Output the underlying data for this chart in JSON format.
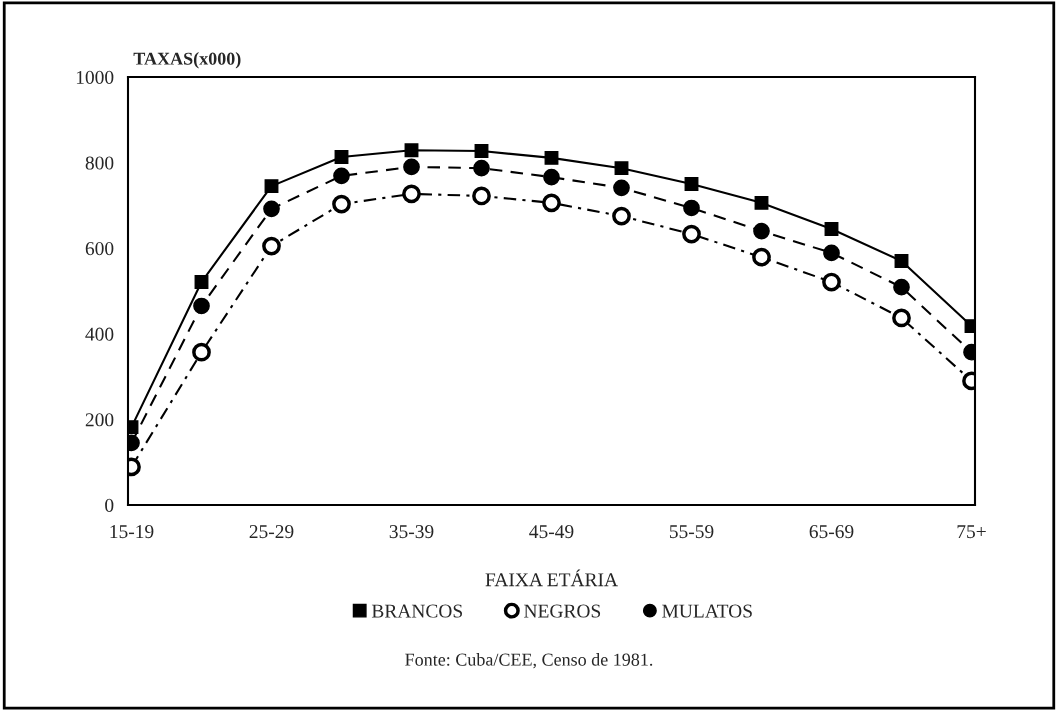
{
  "chart_data": {
    "type": "line",
    "ylabel": "TAXAS(x000)",
    "xlabel": "FAIXA ETÁRIA",
    "categories": [
      "15-19",
      null,
      "25-29",
      null,
      "35-39",
      null,
      "45-49",
      null,
      "55-59",
      null,
      "65-69",
      null,
      "75+"
    ],
    "series": [
      {
        "name": "BRANCOS",
        "color": "#000000",
        "marker": "square",
        "line_style": "solid",
        "values": [
          182,
          521,
          745,
          813,
          829,
          827,
          811,
          787,
          750,
          706,
          645,
          570,
          418
        ]
      },
      {
        "name": "NEGROS",
        "color": "#000000",
        "marker": "open circle",
        "line_style": "dashdot",
        "values": [
          89,
          357,
          605,
          703,
          727,
          722,
          706,
          675,
          633,
          579,
          521,
          437,
          290
        ]
      },
      {
        "name": "MULATOS",
        "color": "#000000",
        "marker": "circle",
        "line_style": "dashed",
        "values": [
          145,
          465,
          692,
          769,
          790,
          787,
          766,
          741,
          694,
          640,
          589,
          509,
          357
        ]
      }
    ],
    "ylim": [
      0,
      1000
    ],
    "yticks": [
      0,
      200,
      400,
      600,
      800,
      1000
    ],
    "grid": false,
    "legend": "bottom",
    "annotations": [
      "Fonte: Cuba/CEE, Censo de 1981."
    ]
  }
}
